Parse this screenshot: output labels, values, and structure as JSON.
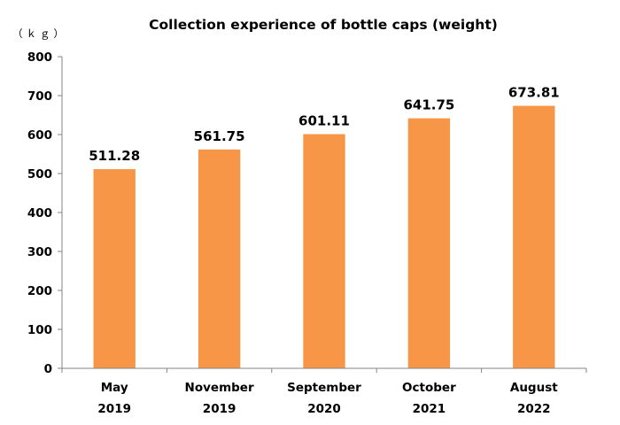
{
  "chart_data": {
    "type": "bar",
    "title": "Collection experience of bottle caps (weight)",
    "ylabel": "（ｋｇ）",
    "xlabel": "",
    "categories": [
      [
        "May",
        "2019"
      ],
      [
        "November",
        "2019"
      ],
      [
        "September",
        "2020"
      ],
      [
        "October",
        "2021"
      ],
      [
        "August",
        "2022"
      ]
    ],
    "values": [
      511.28,
      561.75,
      601.11,
      641.75,
      673.81
    ],
    "data_labels": [
      "511.28",
      "561.75",
      "601.11",
      "641.75",
      "673.81"
    ],
    "ylim": [
      0,
      800
    ],
    "yticks": [
      0,
      100,
      200,
      300,
      400,
      500,
      600,
      700,
      800
    ],
    "grid": false,
    "legend": "none",
    "colors": {
      "bar": "#F79646",
      "axis": "#868686"
    }
  }
}
